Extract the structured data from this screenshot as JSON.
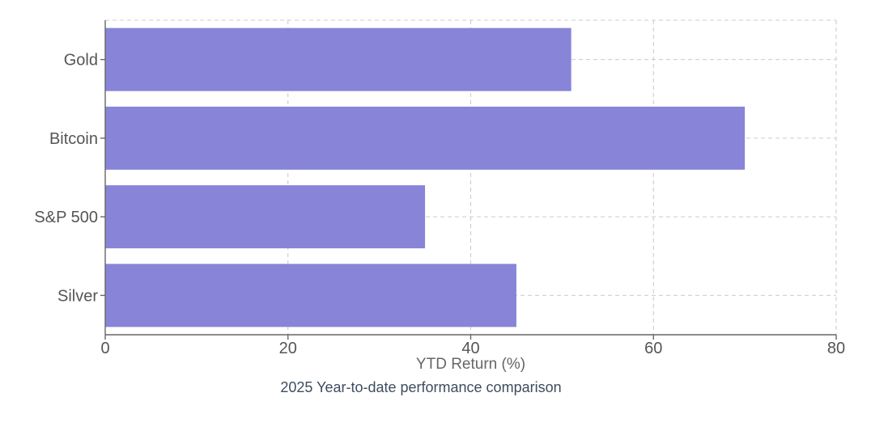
{
  "chart_data": {
    "type": "bar",
    "orientation": "horizontal",
    "title": "",
    "xlabel": "YTD Return (%)",
    "ylabel": "",
    "caption": "2025 Year-to-date performance comparison",
    "categories": [
      "Gold",
      "Bitcoin",
      "S&P 500",
      "Silver"
    ],
    "values": [
      51,
      70,
      35,
      45
    ],
    "xlim": [
      0,
      80
    ],
    "xticks": [
      0,
      20,
      40,
      60,
      80
    ],
    "grid": "dashed",
    "legend": "none",
    "colors": {
      "bar": "#8884d8",
      "grid": "#cccccc",
      "axis": "#666666",
      "tick_text": "#555555",
      "axis_label_text": "#666666",
      "caption_text": "#3e4c5e",
      "background": "#ffffff"
    }
  }
}
